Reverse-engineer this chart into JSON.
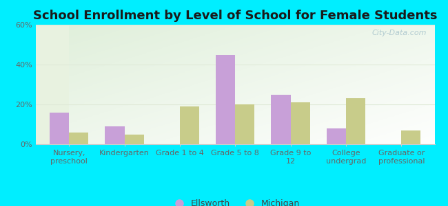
{
  "title": "School Enrollment by Level of School for Female Students",
  "categories": [
    "Nursery,\npreschool",
    "Kindergarten",
    "Grade 1 to 4",
    "Grade 5 to 8",
    "Grade 9 to\n12",
    "College\nundergrad",
    "Graduate or\nprofessional"
  ],
  "ellsworth": [
    16,
    9,
    0,
    45,
    25,
    8,
    0
  ],
  "michigan": [
    6,
    5,
    19,
    20,
    21,
    23,
    7
  ],
  "ellsworth_color": "#c8a0d8",
  "michigan_color": "#c8cc8a",
  "background_outer": "#00eeff",
  "background_inner": "#e8f2e0",
  "ylim": [
    0,
    60
  ],
  "yticks": [
    0,
    20,
    40,
    60
  ],
  "ytick_labels": [
    "0%",
    "20%",
    "40%",
    "60%"
  ],
  "legend_ellsworth": "Ellsworth",
  "legend_michigan": "Michigan",
  "bar_width": 0.35,
  "title_fontsize": 13,
  "tick_fontsize": 8,
  "legend_fontsize": 9,
  "watermark_text": "City-Data.com",
  "watermark_color": "#a8c4cc",
  "grid_color": "#e0ead8",
  "spine_color": "#cccccc"
}
